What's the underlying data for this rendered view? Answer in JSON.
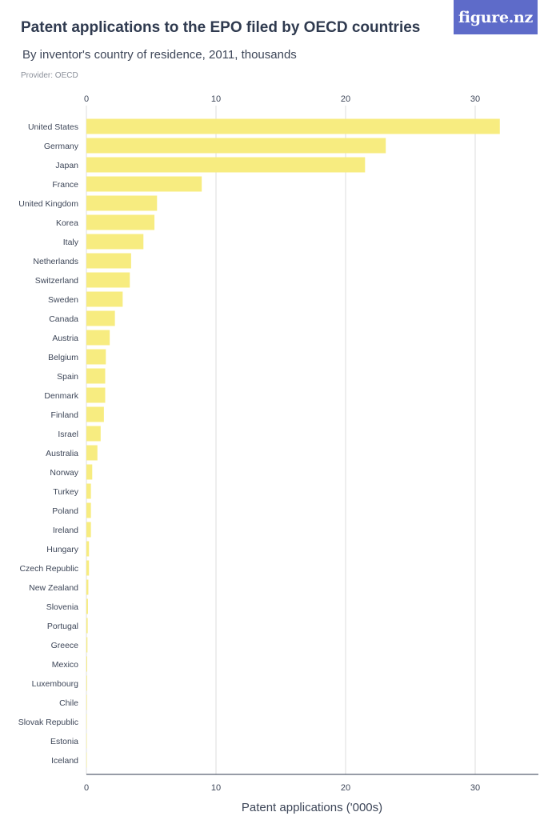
{
  "header": {
    "title": "Patent applications to the EPO filed by OECD countries",
    "subtitle": "By inventor's country of residence, 2011, thousands",
    "provider": "Provider: OECD",
    "logo_text": "figure.nz"
  },
  "colors": {
    "bar": "#f7ec80",
    "grid": "#dddddd",
    "axis": "#2f3a4f",
    "logo_bg": "#5e6bc9"
  },
  "chart_data": {
    "type": "bar",
    "orientation": "horizontal",
    "title": "Patent applications to the EPO filed by OECD countries",
    "subtitle": "By inventor's country of residence, 2011, thousands",
    "xlabel": "Patent applications ('000s)",
    "ylabel": "",
    "xlim": [
      0,
      35
    ],
    "xticks": [
      0,
      10,
      20,
      30
    ],
    "grid": true,
    "categories": [
      "United States",
      "Germany",
      "Japan",
      "France",
      "United Kingdom",
      "Korea",
      "Italy",
      "Netherlands",
      "Switzerland",
      "Sweden",
      "Canada",
      "Austria",
      "Belgium",
      "Spain",
      "Denmark",
      "Finland",
      "Israel",
      "Australia",
      "Norway",
      "Turkey",
      "Poland",
      "Ireland",
      "Hungary",
      "Czech Republic",
      "New Zealand",
      "Slovenia",
      "Portugal",
      "Greece",
      "Mexico",
      "Luxembourg",
      "Chile",
      "Slovak Republic",
      "Estonia",
      "Iceland"
    ],
    "values": [
      31.9,
      23.1,
      21.5,
      8.9,
      5.45,
      5.25,
      4.4,
      3.45,
      3.35,
      2.8,
      2.2,
      1.8,
      1.5,
      1.45,
      1.45,
      1.35,
      1.1,
      0.85,
      0.45,
      0.35,
      0.35,
      0.35,
      0.2,
      0.2,
      0.15,
      0.12,
      0.1,
      0.08,
      0.06,
      0.05,
      0.04,
      0.03,
      0.02,
      0.01
    ]
  }
}
